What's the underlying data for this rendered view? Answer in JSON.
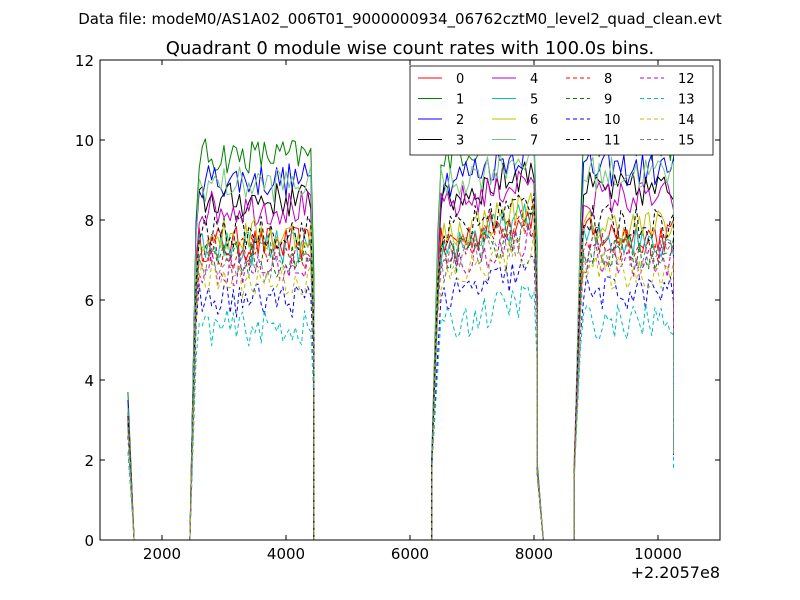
{
  "figure": {
    "suptitle": "Data file: modeM0/AS1A02_006T01_9000000934_06762cztM0_level2_quad_clean.evt"
  },
  "chart_data": {
    "type": "line",
    "title": "Quadrant 0 module wise count rates with 100.0s bins.",
    "xlabel": "",
    "ylabel": "",
    "x_offset_label": "+2.2057e8",
    "xlim": [
      1000,
      11000
    ],
    "ylim": [
      0,
      12
    ],
    "x_ticks": [
      2000,
      4000,
      6000,
      8000,
      10000
    ],
    "y_ticks": [
      0,
      2,
      4,
      6,
      8,
      10,
      12
    ],
    "x_tick_labels": [
      "2000",
      "4000",
      "6000",
      "8000",
      "10000"
    ],
    "y_tick_labels": [
      "0",
      "2",
      "4",
      "6",
      "8",
      "10",
      "12"
    ],
    "legend": {
      "location": "upper-right",
      "columns": 4,
      "entries": [
        "0",
        "1",
        "2",
        "3",
        "4",
        "5",
        "6",
        "7",
        "8",
        "9",
        "10",
        "11",
        "12",
        "13",
        "14",
        "15"
      ]
    },
    "segments": [
      {
        "start": 1450,
        "end": 1550
      },
      {
        "start": 2550,
        "end": 4450
      },
      {
        "start": 6450,
        "end": 8050
      },
      {
        "start": 8750,
        "end": 10250
      }
    ],
    "zero_intervals": [
      [
        1550,
        2450
      ],
      [
        4450,
        6350
      ],
      [
        8050,
        8650
      ]
    ],
    "series": [
      {
        "name": "0",
        "color": "#ff0000",
        "dash": "solid",
        "level": 7.4,
        "edge": 3.3
      },
      {
        "name": "1",
        "color": "#008000",
        "dash": "solid",
        "level": 9.6,
        "edge": 3.7
      },
      {
        "name": "2",
        "color": "#0000ff",
        "dash": "solid",
        "level": 9.0,
        "edge": 3.5
      },
      {
        "name": "3",
        "color": "#000000",
        "dash": "solid",
        "level": 8.5,
        "edge": 3.2
      },
      {
        "name": "4",
        "color": "#bf00bf",
        "dash": "solid",
        "level": 8.3,
        "edge": 3.1
      },
      {
        "name": "5",
        "color": "#00bfbf",
        "dash": "solid",
        "level": 7.3,
        "edge": 2.9
      },
      {
        "name": "6",
        "color": "#bfbf00",
        "dash": "solid",
        "level": 7.6,
        "edge": 3.0
      },
      {
        "name": "7",
        "color": "#77c67f",
        "dash": "solid",
        "level": 8.9,
        "edge": 3.3
      },
      {
        "name": "8",
        "color": "#ff0000",
        "dash": "dashed",
        "level": 7.2,
        "edge": 3.0
      },
      {
        "name": "9",
        "color": "#008000",
        "dash": "dashed",
        "level": 7.0,
        "edge": 2.9
      },
      {
        "name": "10",
        "color": "#0000ff",
        "dash": "dashed",
        "level": 6.0,
        "edge": 2.6
      },
      {
        "name": "11",
        "color": "#000000",
        "dash": "dashed",
        "level": 7.7,
        "edge": 3.1
      },
      {
        "name": "12",
        "color": "#bf00bf",
        "dash": "dashed",
        "level": 6.8,
        "edge": 2.8
      },
      {
        "name": "13",
        "color": "#00bfbf",
        "dash": "dashed",
        "level": 5.3,
        "edge": 2.2
      },
      {
        "name": "14",
        "color": "#bfbf00",
        "dash": "dashed",
        "level": 6.5,
        "edge": 2.7
      },
      {
        "name": "15",
        "color": "#808080",
        "dash": "dashed",
        "level": 6.9,
        "edge": 2.8
      }
    ]
  }
}
